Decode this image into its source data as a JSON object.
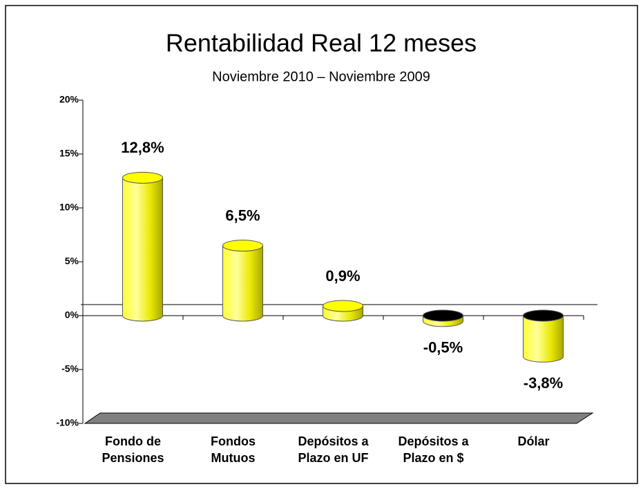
{
  "chart_data": {
    "type": "bar",
    "title": "Rentabilidad Real 12 meses",
    "subtitle": "Noviembre 2010 – Noviembre 2009",
    "categories": [
      "Fondo de Pensiones",
      "Fondos Mutuos",
      "Depósitos a Plazo en UF",
      "Depósitos a Plazo en $",
      "Dólar"
    ],
    "values": [
      12.8,
      6.5,
      0.9,
      -0.5,
      -3.8
    ],
    "value_labels": [
      "12,8%",
      "6,5%",
      "0,9%",
      "-0,5%",
      "-3,8%"
    ],
    "color": "#ffff00",
    "ylim": [
      -10,
      20
    ],
    "yticks": [
      {
        "value": -10,
        "label": "-10%"
      },
      {
        "value": -5,
        "label": "-5%"
      },
      {
        "value": 0,
        "label": "0%"
      },
      {
        "value": 5,
        "label": "5%"
      },
      {
        "value": 10,
        "label": "10%"
      },
      {
        "value": 15,
        "label": "15%"
      },
      {
        "value": 20,
        "label": "20%"
      }
    ]
  }
}
